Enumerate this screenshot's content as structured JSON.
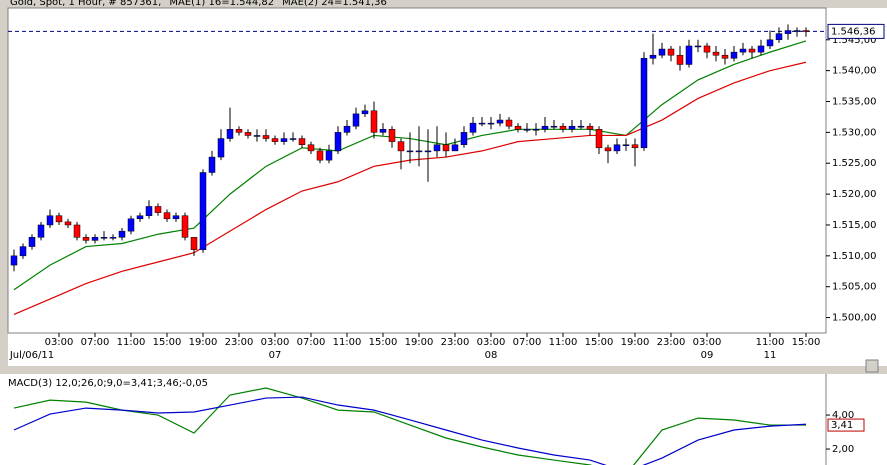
{
  "chart_data": [
    {
      "type": "candlestick",
      "title": "Gold, Spot, 1 Hour, # 857361,",
      "open": [
        1508.5,
        1510,
        1511.5,
        1513,
        1515,
        1516.5,
        1515.5,
        1515,
        1513,
        1512.5,
        1513,
        1513,
        1513,
        1514,
        1516,
        1516.5,
        1518,
        1517,
        1516,
        1516.5,
        1513,
        1511,
        1523.5,
        1526,
        1529,
        1530.5,
        1530,
        1529.5,
        1529.5,
        1529,
        1528.5,
        1529,
        1529,
        1528,
        1527,
        1525.5,
        1527,
        1530,
        1531,
        1533,
        1533.5,
        1530,
        1530.5,
        1528.5,
        1527,
        1527,
        1527,
        1527,
        1528,
        1527,
        1528,
        1530,
        1531.5,
        1531.5,
        1531.5,
        1532,
        1531,
        1530.5,
        1530.5,
        1530.5,
        1531,
        1531,
        1530.5,
        1531,
        1531,
        1530.5,
        1527.5,
        1527,
        1528,
        1528,
        1527.5,
        1542,
        1542.5,
        1543.5,
        1542.5,
        1541,
        1544,
        1544,
        1543,
        1542.5,
        1542,
        1543,
        1543.5,
        1543,
        1544,
        1545,
        1546,
        1546.5,
        1546.5
      ],
      "high": [
        1511,
        1512,
        1513.5,
        1515.5,
        1517.5,
        1517,
        1516,
        1515.5,
        1513.5,
        1513.5,
        1514,
        1513.5,
        1514.5,
        1516.5,
        1517,
        1519,
        1518.5,
        1517.5,
        1517,
        1517,
        1513,
        1524,
        1527,
        1530.5,
        1534,
        1531,
        1530.5,
        1530.5,
        1530.5,
        1529.5,
        1530,
        1530,
        1529.5,
        1528.5,
        1527.5,
        1528,
        1531,
        1532,
        1534,
        1534.5,
        1535,
        1531.5,
        1531,
        1529,
        1530,
        1531,
        1530.5,
        1531,
        1530,
        1529,
        1531,
        1532.5,
        1532.5,
        1532.5,
        1533,
        1532.5,
        1531.5,
        1531.5,
        1531.5,
        1532.5,
        1532,
        1531.5,
        1532,
        1532,
        1531.5,
        1531,
        1528,
        1529,
        1529,
        1529,
        1543,
        1546,
        1544.5,
        1544,
        1544,
        1545,
        1545,
        1544.5,
        1544,
        1543.5,
        1544,
        1544.5,
        1544,
        1545,
        1546.5,
        1547,
        1547.5,
        1547,
        1547
      ],
      "low": [
        1507.5,
        1509.5,
        1511,
        1512.5,
        1514.5,
        1515,
        1514.5,
        1512.5,
        1512,
        1512,
        1512.5,
        1512.5,
        1512.5,
        1513.5,
        1515.5,
        1516,
        1516.5,
        1515.5,
        1515.5,
        1512.5,
        1510,
        1510.5,
        1523,
        1525.5,
        1528.5,
        1529.5,
        1529,
        1528.5,
        1528.5,
        1528,
        1528,
        1528.5,
        1527.5,
        1526.5,
        1525,
        1525,
        1526.5,
        1529.5,
        1530.5,
        1532.5,
        1529,
        1529.5,
        1527.5,
        1524,
        1525,
        1524.5,
        1522,
        1526,
        1526,
        1527,
        1527.5,
        1529.5,
        1531,
        1530.5,
        1531,
        1530.5,
        1530,
        1530,
        1529.5,
        1530,
        1530.5,
        1530,
        1530,
        1530.5,
        1529.5,
        1526.5,
        1525,
        1526.5,
        1527,
        1524.5,
        1527,
        1541,
        1542,
        1541.5,
        1540,
        1540.5,
        1543,
        1542,
        1541.5,
        1541,
        1541.5,
        1542.5,
        1542,
        1542.5,
        1543.5,
        1544.5,
        1545,
        1545.5,
        1545.5
      ],
      "close": [
        1510,
        1511.5,
        1513,
        1515,
        1516.5,
        1515.5,
        1515,
        1513,
        1512.5,
        1513,
        1513,
        1513,
        1514,
        1516,
        1516.5,
        1518,
        1517,
        1516,
        1516.5,
        1513,
        1511,
        1523.5,
        1526,
        1529,
        1530.5,
        1530,
        1529.5,
        1529.5,
        1529,
        1528.5,
        1529,
        1529,
        1528,
        1527,
        1525.5,
        1527,
        1530,
        1531,
        1533,
        1533.5,
        1530,
        1530.5,
        1528.5,
        1527,
        1527,
        1527,
        1527,
        1528,
        1527,
        1528,
        1530,
        1531.5,
        1531.5,
        1531.5,
        1532,
        1531,
        1530.5,
        1530.5,
        1530.5,
        1531,
        1531,
        1530.5,
        1531,
        1531,
        1530.5,
        1527.5,
        1527,
        1528,
        1528,
        1527.5,
        1542,
        1542.5,
        1543.5,
        1542.5,
        1541,
        1544,
        1544,
        1543,
        1542.5,
        1542,
        1543,
        1543.5,
        1543,
        1544,
        1545,
        1546,
        1546.5,
        1546.5,
        1546.36
      ],
      "up_color": "#0000ff",
      "down_color": "#ff0000",
      "series": [
        {
          "name": "MAE(1) 16=1.544,82",
          "color": "#008000",
          "x": [
            0,
            4,
            8,
            12,
            16,
            20,
            24,
            28,
            32,
            36,
            40,
            44,
            48,
            52,
            56,
            60,
            64,
            68,
            72,
            76,
            80,
            84,
            88
          ],
          "values": [
            1504.5,
            1508.5,
            1511.5,
            1512,
            1513.5,
            1514.5,
            1520,
            1524.5,
            1527.5,
            1527,
            1529.5,
            1529,
            1528,
            1529.5,
            1530.5,
            1530.5,
            1530.5,
            1529.5,
            1534.5,
            1538.5,
            1541,
            1543,
            1544.82
          ]
        },
        {
          "name": "MAE(2) 24=1.541,36",
          "color": "#dd0000",
          "x": [
            0,
            4,
            8,
            12,
            16,
            20,
            24,
            28,
            32,
            36,
            40,
            44,
            48,
            52,
            56,
            60,
            64,
            68,
            72,
            76,
            80,
            84,
            88
          ],
          "values": [
            1500.5,
            1503,
            1505.5,
            1507.5,
            1509,
            1510.5,
            1514,
            1517.5,
            1520.5,
            1522,
            1524.5,
            1525.5,
            1526,
            1527,
            1528.5,
            1529,
            1529.5,
            1529.5,
            1532,
            1535.5,
            1538,
            1540,
            1541.36
          ]
        }
      ],
      "ylim": [
        1497.5,
        1549.5
      ],
      "yticks": [
        {
          "value": 1500,
          "label": "1.500,00"
        },
        {
          "value": 1505,
          "label": "1.505,00"
        },
        {
          "value": 1510,
          "label": "1.510,00"
        },
        {
          "value": 1515,
          "label": "1.515,00"
        },
        {
          "value": 1520,
          "label": "1.520,00"
        },
        {
          "value": 1525,
          "label": "1.525,00"
        },
        {
          "value": 1530,
          "label": "1.530,00"
        },
        {
          "value": 1535,
          "label": "1.535,00"
        },
        {
          "value": 1540,
          "label": "1.540,00"
        },
        {
          "value": 1545,
          "label": "1.545,00"
        }
      ],
      "last_price": {
        "value": 1546.36,
        "label": "1.546,36"
      },
      "xticks": [
        {
          "value": 5,
          "label": "03:00"
        },
        {
          "value": 9,
          "label": "07:00"
        },
        {
          "value": 13,
          "label": "11:00"
        },
        {
          "value": 17,
          "label": "15:00"
        },
        {
          "value": 21,
          "label": "19:00"
        },
        {
          "value": 25,
          "label": "23:00"
        },
        {
          "value": 29,
          "label": "03:00"
        },
        {
          "value": 33,
          "label": "07:00"
        },
        {
          "value": 37,
          "label": "11:00"
        },
        {
          "value": 41,
          "label": "15:00"
        },
        {
          "value": 45,
          "label": "19:00"
        },
        {
          "value": 49,
          "label": "23:00"
        },
        {
          "value": 53,
          "label": "03:00"
        },
        {
          "value": 57,
          "label": "07:00"
        },
        {
          "value": 61,
          "label": "11:00"
        },
        {
          "value": 65,
          "label": "15:00"
        },
        {
          "value": 69,
          "label": "19:00"
        },
        {
          "value": 73,
          "label": "23:00"
        },
        {
          "value": 77,
          "label": "03:00"
        },
        {
          "value": 84,
          "label": "11:00"
        },
        {
          "value": 88,
          "label": "15:00"
        }
      ],
      "xticks2": [
        {
          "value": 2,
          "label": "Jul/06/11"
        },
        {
          "value": 29,
          "label": "07"
        },
        {
          "value": 53,
          "label": "08"
        },
        {
          "value": 77,
          "label": "09"
        },
        {
          "value": 84,
          "label": "11"
        }
      ]
    },
    {
      "type": "line",
      "title": "MACD(3) 12,0;26,0;9,0=3,41;3,46;-0,05",
      "x": [
        0,
        4,
        8,
        12,
        16,
        20,
        24,
        28,
        32,
        36,
        40,
        44,
        48,
        52,
        56,
        60,
        64,
        68,
        72,
        76,
        80,
        84,
        88
      ],
      "series": [
        {
          "name": "MACD",
          "color": "#008000",
          "values": [
            4.41,
            4.88,
            4.76,
            4.29,
            4.0,
            2.94,
            5.18,
            5.59,
            5.0,
            4.29,
            4.18,
            3.41,
            2.65,
            2.12,
            1.65,
            1.35,
            1.06,
            0.5,
            3.12,
            3.82,
            3.71,
            3.41,
            3.41
          ]
        },
        {
          "name": "Signal",
          "color": "#0000cc",
          "values": [
            3.12,
            4.06,
            4.41,
            4.29,
            4.12,
            4.18,
            4.59,
            5.0,
            5.06,
            4.59,
            4.29,
            3.71,
            3.12,
            2.53,
            2.06,
            1.65,
            1.35,
            0.65,
            1.47,
            2.53,
            3.12,
            3.35,
            3.46
          ]
        }
      ],
      "ylim": [
        1.06,
        6.24
      ],
      "yticks": [
        {
          "value": 4,
          "label": "4,00"
        },
        {
          "value": 2,
          "label": "2,00"
        }
      ],
      "last_value": {
        "value": 3.41,
        "label": "3,41"
      }
    }
  ]
}
